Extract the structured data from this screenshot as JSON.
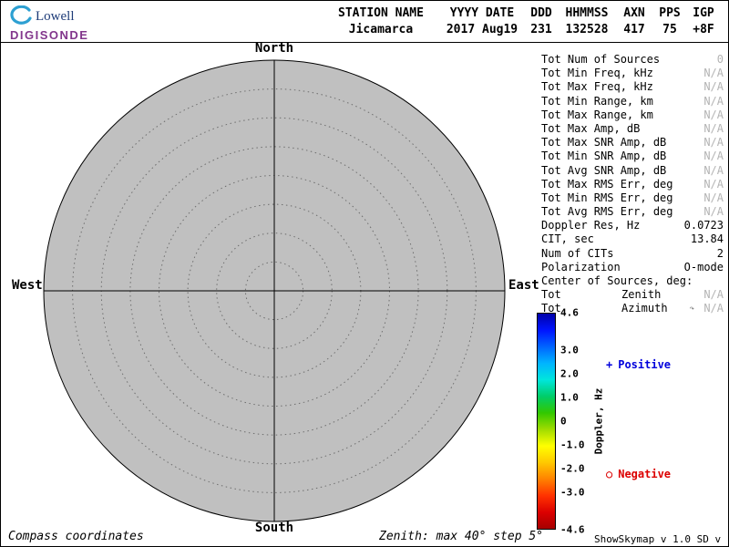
{
  "logo": {
    "line1": "Lowell",
    "line2": "DIGISONDE",
    "swoosh_color": "#2da0d2",
    "lowell_color": "#1e3c78",
    "digisonde_color": "#82368c"
  },
  "header": {
    "cols": [
      {
        "label": "STATION NAME",
        "value": "Jicamarca"
      },
      {
        "label": "YYYY DATE",
        "value": "2017 Aug19"
      },
      {
        "label": "DDD",
        "value": "231"
      },
      {
        "label": "HHMMSS",
        "value": "132528"
      },
      {
        "label": "AXN",
        "value": "417"
      },
      {
        "label": "PPS",
        "value": "75"
      },
      {
        "label": "IGP",
        "value": "+8F"
      }
    ]
  },
  "compass": {
    "north": "North",
    "south": "South",
    "west": "West",
    "east": "East",
    "max_zenith_deg": 40,
    "step_deg": 5,
    "fill": "#c0c0c0"
  },
  "stats": {
    "rows": [
      {
        "label": "Tot Num of Sources",
        "mid": "",
        "value": "0",
        "na": true
      },
      {
        "label": "Tot Min Freq, kHz",
        "mid": "",
        "value": "N/A",
        "na": true
      },
      {
        "label": "Tot Max Freq, kHz",
        "mid": "",
        "value": "N/A",
        "na": true
      },
      {
        "label": "Tot Min Range, km",
        "mid": "",
        "value": "N/A",
        "na": true
      },
      {
        "label": "Tot Max Range, km",
        "mid": "",
        "value": "N/A",
        "na": true
      },
      {
        "label": "Tot Max Amp, dB",
        "mid": "",
        "value": "N/A",
        "na": true
      },
      {
        "label": "Tot Max SNR Amp, dB",
        "mid": "",
        "value": "N/A",
        "na": true
      },
      {
        "label": "Tot Min SNR Amp, dB",
        "mid": "",
        "value": "N/A",
        "na": true
      },
      {
        "label": "Tot Avg SNR Amp, dB",
        "mid": "",
        "value": "N/A",
        "na": true
      },
      {
        "label": "Tot Max RMS Err, deg",
        "mid": "",
        "value": "N/A",
        "na": true
      },
      {
        "label": "Tot Min RMS Err, deg",
        "mid": "",
        "value": "N/A",
        "na": true
      },
      {
        "label": "Tot Avg RMS Err, deg",
        "mid": "",
        "value": "N/A",
        "na": true
      },
      {
        "label": "Doppler Res, Hz",
        "mid": "",
        "value": "0.0723",
        "na": false
      },
      {
        "label": "CIT, sec",
        "mid": "",
        "value": "13.84",
        "na": false
      },
      {
        "label": "Num of CITs",
        "mid": "",
        "value": "2",
        "na": false
      },
      {
        "label": "Polarization",
        "mid": "",
        "value": "O-mode",
        "na": false
      },
      {
        "label": "Center of Sources, deg:",
        "mid": "",
        "value": "",
        "na": false
      },
      {
        "label": "Tot",
        "mid": "Zenith",
        "value": "N/A",
        "na": true
      },
      {
        "label": "Tot",
        "mid": "Azimuth",
        "value": "N/A",
        "na": true,
        "icon": "↷"
      }
    ]
  },
  "colorbar": {
    "title": "Doppler, Hz",
    "max": 4.6,
    "min": -4.6,
    "ticks": [
      {
        "value": 4.6,
        "label": "4.6"
      },
      {
        "value": 3.0,
        "label": "3.0"
      },
      {
        "value": 2.0,
        "label": "2.0"
      },
      {
        "value": 1.0,
        "label": "1.0"
      },
      {
        "value": 0,
        "label": "0"
      },
      {
        "value": -1.0,
        "label": "-1.0"
      },
      {
        "value": -2.0,
        "label": "-2.0"
      },
      {
        "value": -3.0,
        "label": "-3.0"
      },
      {
        "value": -4.6,
        "label": "-4.6"
      }
    ],
    "gradient": [
      "#0000a8",
      "#0014ff",
      "#0064ff",
      "#00b4ff",
      "#00e6dc",
      "#00cd69",
      "#32c800",
      "#a0dc00",
      "#ffff00",
      "#ffc800",
      "#ff8200",
      "#ff3200",
      "#dc0000",
      "#a50000"
    ],
    "legend": [
      {
        "marker": "+",
        "text": "Positive",
        "color": "#0000dc"
      },
      {
        "marker": "○",
        "text": "Negative",
        "color": "#dc0000"
      }
    ]
  },
  "footer": {
    "left": "Compass coordinates",
    "center": "Zenith: max 40°  step 5°",
    "right": "ShowSkymap v 1.0  SD v 4.2"
  }
}
